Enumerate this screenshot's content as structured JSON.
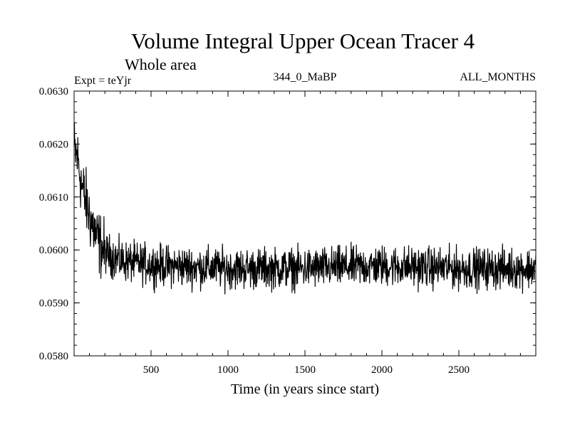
{
  "chart_data": {
    "type": "line",
    "title": "Volume Integral Upper Ocean Tracer 4",
    "subtitle": "Whole area",
    "expt_label": "Expt = teYjr",
    "run_label": "344_0_MaBP",
    "period_label": "ALL_MONTHS",
    "xlabel": "Time (in years since start)",
    "ylabel": "",
    "xlim": [
      0,
      3000
    ],
    "ylim": [
      0.058,
      0.063
    ],
    "x_ticks": [
      500,
      1000,
      1500,
      2000,
      2500
    ],
    "x_tick_labels": [
      "500",
      "1000",
      "1500",
      "2000",
      "2500"
    ],
    "y_ticks": [
      0.058,
      0.059,
      0.06,
      0.061,
      0.062,
      0.063
    ],
    "y_tick_labels": [
      "0.0580",
      "0.0590",
      "0.0600",
      "0.0610",
      "0.0620",
      "0.0630"
    ],
    "series": [
      {
        "name": "Tracer 4 volume integral",
        "color": "#000000",
        "anchor_points": {
          "x": [
            0,
            25,
            50,
            100,
            150,
            200,
            300,
            400,
            600,
            1000,
            1500,
            2000,
            2500,
            3000
          ],
          "y": [
            0.0619,
            0.0617,
            0.0612,
            0.06065,
            0.0602,
            0.05995,
            0.0598,
            0.05975,
            0.0597,
            0.05965,
            0.05965,
            0.0597,
            0.05965,
            0.05965
          ]
        },
        "noise_amplitude": 0.00028
      }
    ]
  }
}
